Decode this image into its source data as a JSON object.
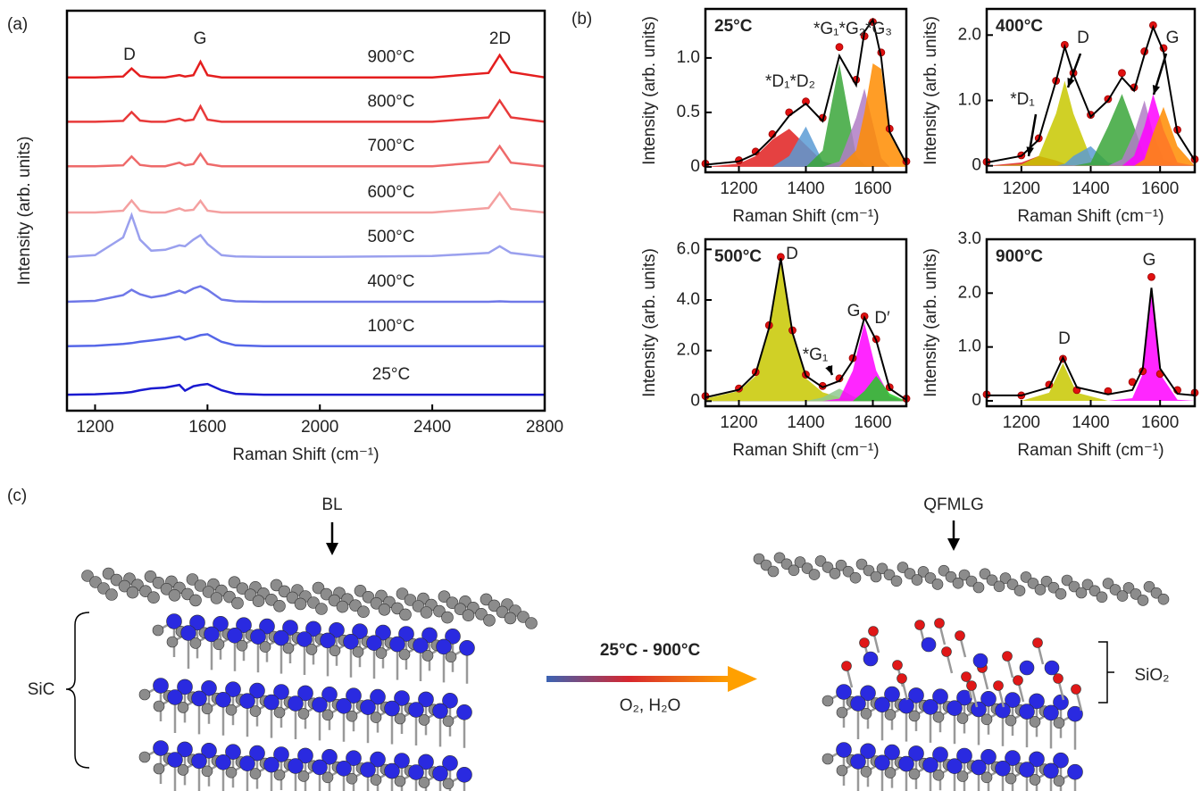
{
  "panel_labels": [
    "(a)",
    "(b)",
    "(c)"
  ],
  "chart_data": [
    {
      "type": "line",
      "xlabel": "Raman Shift (cm⁻¹)",
      "ylabel": "Intensity (arb. units)",
      "xlim": [
        1100,
        2800
      ],
      "xticks": [
        1200,
        1600,
        2000,
        2400,
        2800
      ],
      "ylim": [
        0,
        9
      ],
      "annotations": [
        "D",
        "G",
        "2D"
      ],
      "x": [
        1100,
        1200,
        1300,
        1330,
        1360,
        1400,
        1450,
        1500,
        1520,
        1550,
        1575,
        1600,
        1650,
        1700,
        1800,
        2000,
        2400,
        2600,
        2640,
        2680,
        2800
      ],
      "series": [
        {
          "name": "900°C",
          "color": "#e41e1e",
          "values": [
            7.5,
            7.5,
            7.52,
            7.7,
            7.53,
            7.5,
            7.5,
            7.55,
            7.52,
            7.55,
            7.85,
            7.55,
            7.5,
            7.5,
            7.5,
            7.5,
            7.5,
            7.6,
            8.0,
            7.62,
            7.5
          ]
        },
        {
          "name": "800°C",
          "color": "#e83a3a",
          "values": [
            6.5,
            6.5,
            6.52,
            6.72,
            6.53,
            6.5,
            6.5,
            6.57,
            6.52,
            6.55,
            6.85,
            6.55,
            6.5,
            6.5,
            6.5,
            6.5,
            6.5,
            6.6,
            6.98,
            6.6,
            6.5
          ]
        },
        {
          "name": "700°C",
          "color": "#ee6a6a",
          "values": [
            5.5,
            5.5,
            5.52,
            5.72,
            5.53,
            5.5,
            5.5,
            5.58,
            5.52,
            5.55,
            5.78,
            5.55,
            5.5,
            5.5,
            5.5,
            5.5,
            5.5,
            5.6,
            5.95,
            5.58,
            5.5
          ]
        },
        {
          "name": "600°C",
          "color": "#f4a0a0",
          "values": [
            4.46,
            4.46,
            4.5,
            4.73,
            4.5,
            4.46,
            4.46,
            4.55,
            4.5,
            4.52,
            4.72,
            4.5,
            4.46,
            4.46,
            4.46,
            4.46,
            4.46,
            4.56,
            4.9,
            4.54,
            4.46
          ]
        },
        {
          "name": "500°C",
          "color": "#9aa0ee",
          "values": [
            3.46,
            3.5,
            3.9,
            4.4,
            3.85,
            3.6,
            3.62,
            3.72,
            3.7,
            3.85,
            3.95,
            3.75,
            3.5,
            3.47,
            3.46,
            3.46,
            3.48,
            3.55,
            3.7,
            3.55,
            3.46
          ]
        },
        {
          "name": "400°C",
          "color": "#6f78e8",
          "values": [
            2.45,
            2.47,
            2.6,
            2.72,
            2.62,
            2.55,
            2.6,
            2.7,
            2.65,
            2.75,
            2.8,
            2.72,
            2.5,
            2.46,
            2.45,
            2.45,
            2.45,
            2.45,
            2.46,
            2.45,
            2.45
          ]
        },
        {
          "name": "100°C",
          "color": "#5566e8",
          "values": [
            1.45,
            1.46,
            1.5,
            1.52,
            1.55,
            1.58,
            1.62,
            1.67,
            1.6,
            1.65,
            1.7,
            1.72,
            1.55,
            1.47,
            1.45,
            1.45,
            1.45,
            1.45,
            1.45,
            1.45,
            1.45
          ]
        },
        {
          "name": "25°C",
          "color": "#1a1ad0",
          "values": [
            0.36,
            0.37,
            0.4,
            0.42,
            0.46,
            0.5,
            0.52,
            0.58,
            0.45,
            0.55,
            0.58,
            0.6,
            0.46,
            0.38,
            0.36,
            0.36,
            0.36,
            0.36,
            0.36,
            0.36,
            0.36
          ]
        }
      ]
    },
    {
      "type": "line",
      "title": "25°C",
      "xlabel": "Raman Shift (cm⁻¹)",
      "ylabel": "Intensity (arb. units)",
      "xlim": [
        1100,
        1700
      ],
      "xticks": [
        1200,
        1400,
        1600
      ],
      "ylim": [
        -0.05,
        1.45
      ],
      "yticks": [
        0,
        0.5,
        {
          "value": 1,
          "label": "1.0"
        }
      ],
      "annotations": [
        "*D₁*D₂",
        "*G₁*G₂*G₃"
      ],
      "x": [
        1100,
        1200,
        1250,
        1300,
        1350,
        1400,
        1450,
        1500,
        1550,
        1575,
        1600,
        1625,
        1650,
        1700
      ],
      "series": [
        {
          "style": "area",
          "color": "#e02020",
          "values": [
            0,
            0.03,
            0.1,
            0.25,
            0.35,
            0.2,
            0.05,
            0.01,
            0,
            0,
            0,
            0,
            0,
            0
          ]
        },
        {
          "style": "area",
          "color": "#5b9bd5",
          "values": [
            0,
            0,
            0,
            0,
            0.1,
            0.37,
            0.05,
            0,
            0,
            0,
            0,
            0,
            0,
            0
          ]
        },
        {
          "style": "area",
          "color": "#3aa63a",
          "values": [
            0,
            0,
            0,
            0,
            0,
            0,
            0.15,
            0.95,
            0.1,
            0.02,
            0,
            0,
            0,
            0
          ]
        },
        {
          "style": "area",
          "color": "#b07cc6",
          "values": [
            0,
            0,
            0,
            0,
            0,
            0,
            0,
            0.05,
            0.45,
            0.72,
            0.4,
            0.08,
            0,
            0
          ]
        },
        {
          "style": "area",
          "color": "#ff8c00",
          "values": [
            0,
            0,
            0,
            0,
            0,
            0,
            0,
            0,
            0.15,
            0.5,
            0.95,
            0.9,
            0.3,
            0.02
          ]
        },
        {
          "style": "points",
          "color": "#e01010",
          "values": [
            0.03,
            0.06,
            0.14,
            0.3,
            0.5,
            0.6,
            0.45,
            1.1,
            0.8,
            1.2,
            1.33,
            1.05,
            0.35,
            0.05
          ]
        },
        {
          "style": "line",
          "color": "#000000",
          "values": [
            0.02,
            0.05,
            0.12,
            0.27,
            0.47,
            0.58,
            0.42,
            1.02,
            0.75,
            1.24,
            1.35,
            1.0,
            0.32,
            0.03
          ]
        }
      ]
    },
    {
      "type": "line",
      "title": "400°C",
      "xlabel": "Raman Shift (cm⁻¹)",
      "ylabel": "Intensity (arb. units)",
      "xlim": [
        1100,
        1700
      ],
      "xticks": [
        1200,
        1400,
        1600
      ],
      "ylim": [
        -0.1,
        2.4
      ],
      "yticks": [
        0,
        {
          "value": 1,
          "label": "1.0"
        },
        {
          "value": 2,
          "label": "2.0"
        }
      ],
      "annotations": [
        "*D₁",
        "D",
        "G"
      ],
      "x": [
        1100,
        1200,
        1250,
        1300,
        1325,
        1350,
        1400,
        1450,
        1490,
        1525,
        1555,
        1580,
        1610,
        1650,
        1700
      ],
      "series": [
        {
          "style": "area",
          "color": "#e02020",
          "values": [
            0,
            0.05,
            0.15,
            0.08,
            0.03,
            0,
            0,
            0,
            0,
            0,
            0,
            0,
            0,
            0,
            0
          ]
        },
        {
          "style": "area",
          "color": "#c8c800",
          "values": [
            0,
            0.02,
            0.15,
            0.8,
            1.3,
            0.8,
            0.12,
            0.02,
            0,
            0,
            0,
            0,
            0,
            0,
            0
          ]
        },
        {
          "style": "area",
          "color": "#5b9bd5",
          "values": [
            0,
            0,
            0,
            0,
            0.03,
            0.15,
            0.3,
            0.05,
            0,
            0,
            0,
            0,
            0,
            0,
            0
          ]
        },
        {
          "style": "area",
          "color": "#3aa63a",
          "values": [
            0,
            0,
            0,
            0,
            0,
            0,
            0.05,
            0.6,
            1.1,
            0.6,
            0.15,
            0.03,
            0,
            0,
            0
          ]
        },
        {
          "style": "area",
          "color": "#b07cc6",
          "values": [
            0,
            0,
            0,
            0,
            0,
            0,
            0,
            0,
            0.1,
            0.5,
            1.0,
            0.5,
            0.1,
            0,
            0
          ]
        },
        {
          "style": "area",
          "color": "#ff00ff",
          "values": [
            0,
            0,
            0,
            0,
            0,
            0,
            0,
            0,
            0,
            0.15,
            0.6,
            1.1,
            0.55,
            0.05,
            0
          ]
        },
        {
          "style": "area",
          "color": "#ff8c00",
          "values": [
            0,
            0,
            0,
            0,
            0,
            0,
            0,
            0,
            0,
            0,
            0.1,
            0.5,
            0.9,
            0.3,
            0
          ]
        },
        {
          "style": "points",
          "color": "#e01010",
          "values": [
            0.06,
            0.16,
            0.42,
            1.3,
            1.85,
            1.42,
            0.78,
            1.02,
            1.42,
            1.2,
            1.75,
            2.15,
            1.8,
            0.55,
            0.1
          ]
        },
        {
          "style": "line",
          "color": "#000000",
          "values": [
            0.05,
            0.15,
            0.4,
            1.3,
            1.82,
            1.4,
            0.75,
            1.0,
            1.35,
            1.15,
            1.7,
            2.12,
            1.75,
            0.5,
            0.08
          ]
        }
      ]
    },
    {
      "type": "line",
      "title": "500°C",
      "xlabel": "Raman Shift (cm⁻¹)",
      "ylabel": "Intensity (arb. units)",
      "xlim": [
        1100,
        1700
      ],
      "xticks": [
        1200,
        1400,
        1600
      ],
      "ylim": [
        -0.2,
        6.4
      ],
      "yticks": [
        0,
        {
          "value": 2,
          "label": "2.0"
        },
        {
          "value": 4,
          "label": "4.0"
        },
        {
          "value": 6,
          "label": "6.0"
        }
      ],
      "annotations": [
        "D",
        "*G₁",
        "G",
        "D′"
      ],
      "x": [
        1100,
        1200,
        1250,
        1290,
        1325,
        1360,
        1400,
        1450,
        1500,
        1540,
        1575,
        1610,
        1650,
        1700
      ],
      "series": [
        {
          "style": "area",
          "color": "#c8c800",
          "values": [
            0.1,
            0.4,
            1.0,
            2.8,
            5.6,
            2.6,
            0.9,
            0.35,
            0.15,
            0.08,
            0.05,
            0,
            0,
            0
          ]
        },
        {
          "style": "area",
          "color": "#8fc98f",
          "values": [
            0,
            0,
            0,
            0,
            0,
            0,
            0,
            0.15,
            0.5,
            0.2,
            0,
            0,
            0,
            0
          ]
        },
        {
          "style": "area",
          "color": "#ff00ff",
          "values": [
            0,
            0,
            0,
            0,
            0,
            0,
            0,
            0,
            0.1,
            1.2,
            3.1,
            1.2,
            0.2,
            0
          ]
        },
        {
          "style": "area",
          "color": "#22cc22",
          "values": [
            0,
            0,
            0,
            0,
            0,
            0,
            0,
            0,
            0,
            0,
            0.4,
            1.0,
            0.3,
            0
          ]
        },
        {
          "style": "points",
          "color": "#e01010",
          "values": [
            0.2,
            0.5,
            1.15,
            3.0,
            5.7,
            2.8,
            1.05,
            0.6,
            0.9,
            1.7,
            3.35,
            2.45,
            0.55,
            0.1
          ]
        },
        {
          "style": "line",
          "color": "#000000",
          "values": [
            0.15,
            0.45,
            1.1,
            2.9,
            5.65,
            2.7,
            1.0,
            0.55,
            0.8,
            1.6,
            3.3,
            2.4,
            0.5,
            0.05
          ]
        }
      ]
    },
    {
      "type": "line",
      "title": "900°C",
      "xlabel": "Raman Shift (cm⁻¹)",
      "ylabel": "Intensity (arb. units)",
      "xlim": [
        1100,
        1700
      ],
      "xticks": [
        1200,
        1400,
        1600
      ],
      "ylim": [
        -0.1,
        3.0
      ],
      "yticks": [
        0,
        {
          "value": 1,
          "label": "1.0"
        },
        {
          "value": 2,
          "label": "2.0"
        },
        {
          "value": 3,
          "label": "3.0"
        }
      ],
      "annotations": [
        "D",
        "G"
      ],
      "x": [
        1100,
        1200,
        1280,
        1320,
        1360,
        1450,
        1520,
        1550,
        1575,
        1600,
        1650,
        1700
      ],
      "series": [
        {
          "style": "area",
          "color": "#c8c800",
          "values": [
            0,
            0,
            0.15,
            0.7,
            0.15,
            0,
            0,
            0,
            0,
            0,
            0,
            0
          ]
        },
        {
          "style": "area",
          "color": "#ff00ff",
          "values": [
            0,
            0,
            0,
            0,
            0,
            0,
            0.05,
            0.5,
            2.0,
            0.5,
            0.02,
            0
          ]
        },
        {
          "style": "points",
          "color": "#e01010",
          "values": [
            0.12,
            0.1,
            0.3,
            0.78,
            0.2,
            0.18,
            0.35,
            0.55,
            2.3,
            0.5,
            0.2,
            0.15
          ]
        },
        {
          "style": "line",
          "color": "#000000",
          "values": [
            0.1,
            0.1,
            0.25,
            0.8,
            0.25,
            0.12,
            0.2,
            0.6,
            2.1,
            0.6,
            0.13,
            0.1
          ]
        }
      ]
    }
  ],
  "diagram": {
    "bl": "BL",
    "qfmlg": "QFMLG",
    "sic": "SiC",
    "sio2": "SiO₂",
    "temperature": "25°C - 900°C",
    "gases": "O₂, H₂O"
  }
}
